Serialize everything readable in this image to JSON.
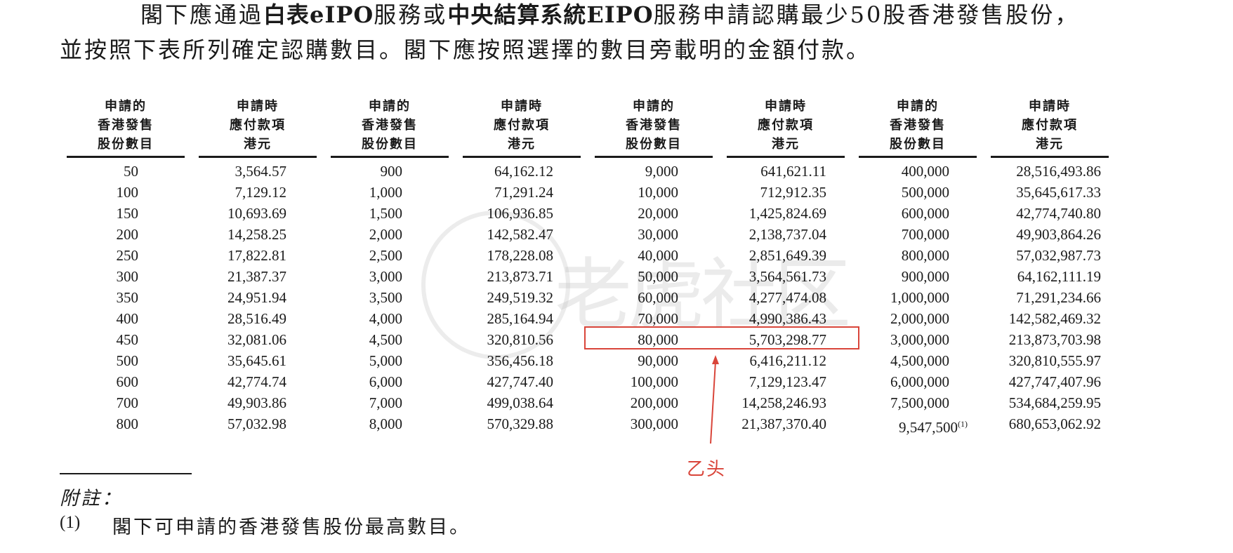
{
  "intro": {
    "line1_a": "閣下應通過",
    "line1_b1": "白表eIPO",
    "line1_c": "服務或",
    "line1_b2": "中央結算系統EIPO",
    "line1_d": "服務申請認購最少50股香港發售股份，",
    "line2": "並按照下表所列確定認購數目。閣下應按照選擇的數目旁載明的金額付款。"
  },
  "table": {
    "headers": [
      [
        "申請的",
        "香港發售",
        "股份數目"
      ],
      [
        "申請時",
        "應付款項",
        "港元"
      ],
      [
        "申請的",
        "香港發售",
        "股份數目"
      ],
      [
        "申請時",
        "應付款項",
        "港元"
      ],
      [
        "申請的",
        "香港發售",
        "股份數目"
      ],
      [
        "申請時",
        "應付款項",
        "港元"
      ],
      [
        "申請的",
        "香港發售",
        "股份數目"
      ],
      [
        "申請時",
        "應付款項",
        "港元"
      ]
    ],
    "rows": [
      [
        "50",
        "3,564.57",
        "900",
        "64,162.12",
        "9,000",
        "641,621.11",
        "400,000",
        "28,516,493.86"
      ],
      [
        "100",
        "7,129.12",
        "1,000",
        "71,291.24",
        "10,000",
        "712,912.35",
        "500,000",
        "35,645,617.33"
      ],
      [
        "150",
        "10,693.69",
        "1,500",
        "106,936.85",
        "20,000",
        "1,425,824.69",
        "600,000",
        "42,774,740.80"
      ],
      [
        "200",
        "14,258.25",
        "2,000",
        "142,582.47",
        "30,000",
        "2,138,737.04",
        "700,000",
        "49,903,864.26"
      ],
      [
        "250",
        "17,822.81",
        "2,500",
        "178,228.08",
        "40,000",
        "2,851,649.39",
        "800,000",
        "57,032,987.73"
      ],
      [
        "300",
        "21,387.37",
        "3,000",
        "213,873.71",
        "50,000",
        "3,564,561.73",
        "900,000",
        "64,162,111.19"
      ],
      [
        "350",
        "24,951.94",
        "3,500",
        "249,519.32",
        "60,000",
        "4,277,474.08",
        "1,000,000",
        "71,291,234.66"
      ],
      [
        "400",
        "28,516.49",
        "4,000",
        "285,164.94",
        "70,000",
        "4,990,386.43",
        "2,000,000",
        "142,582,469.32"
      ],
      [
        "450",
        "32,081.06",
        "4,500",
        "320,810.56",
        "80,000",
        "5,703,298.77",
        "3,000,000",
        "213,873,703.98"
      ],
      [
        "500",
        "35,645.61",
        "5,000",
        "356,456.18",
        "90,000",
        "6,416,211.12",
        "4,500,000",
        "320,810,555.97"
      ],
      [
        "600",
        "42,774.74",
        "6,000",
        "427,747.40",
        "100,000",
        "7,129,123.47",
        "6,000,000",
        "427,747,407.96"
      ],
      [
        "700",
        "49,903.86",
        "7,000",
        "499,038.64",
        "200,000",
        "14,258,246.93",
        "7,500,000",
        "534,684,259.95"
      ],
      [
        "800",
        "57,032.98",
        "8,000",
        "570,329.88",
        "300,000",
        "21,387,370.40",
        "9,547,500",
        "680,653,062.92"
      ]
    ],
    "last_sup": "(1)"
  },
  "watermark": {
    "text": "老虎社区"
  },
  "annotation": {
    "text": "乙头",
    "color": "#d9453a"
  },
  "footnote": {
    "title": "附註：",
    "num": "(1)",
    "text": "閣下可申請的香港發售股份最高數目。"
  }
}
